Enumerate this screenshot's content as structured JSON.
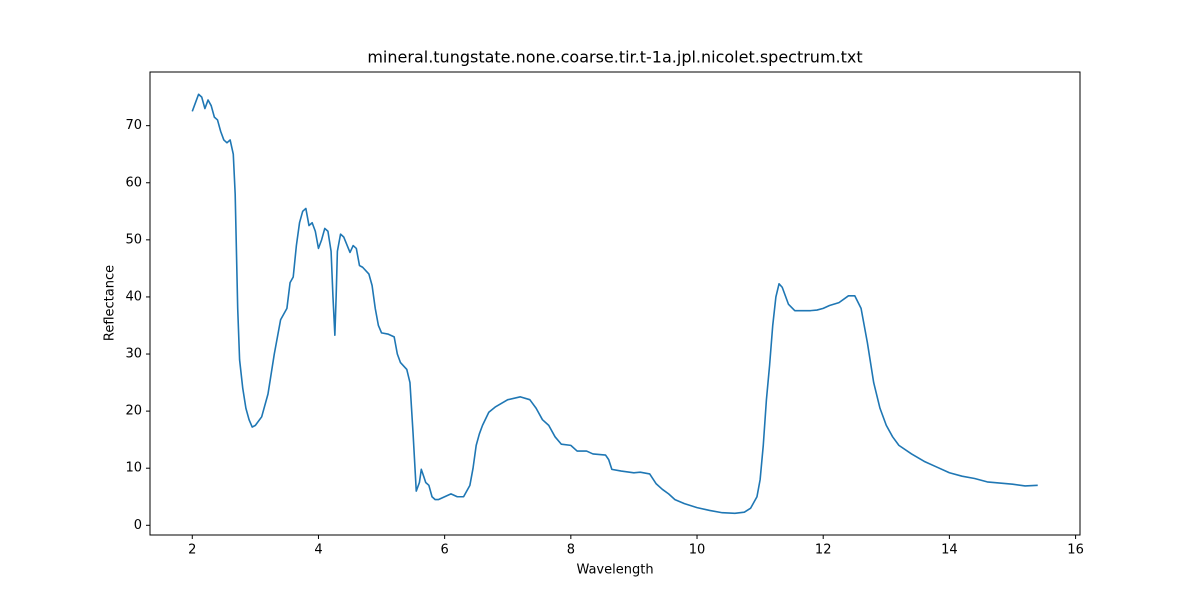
{
  "chart_data": {
    "type": "line",
    "title": "mineral.tungstate.none.coarse.tir.t-1a.jpl.nicolet.spectrum.txt",
    "x_label": "Wavelength",
    "y_label": "Reflectance",
    "xlim": [
      1.33,
      16.07
    ],
    "ylim": [
      -1.7,
      79.4
    ],
    "xticks": [
      2,
      4,
      6,
      8,
      10,
      12,
      14,
      16
    ],
    "yticks": [
      0,
      10,
      20,
      30,
      40,
      50,
      60,
      70
    ],
    "series": [
      {
        "color": "#1f77b4",
        "x": [
          2.0,
          2.05,
          2.1,
          2.15,
          2.2,
          2.25,
          2.3,
          2.35,
          2.4,
          2.45,
          2.5,
          2.55,
          2.6,
          2.65,
          2.68,
          2.7,
          2.72,
          2.75,
          2.8,
          2.85,
          2.9,
          2.95,
          3.0,
          3.1,
          3.2,
          3.3,
          3.4,
          3.5,
          3.55,
          3.6,
          3.65,
          3.7,
          3.75,
          3.8,
          3.85,
          3.9,
          3.95,
          4.0,
          4.05,
          4.1,
          4.15,
          4.2,
          4.23,
          4.26,
          4.28,
          4.3,
          4.35,
          4.4,
          4.5,
          4.55,
          4.6,
          4.65,
          4.7,
          4.8,
          4.85,
          4.9,
          4.95,
          5.0,
          5.1,
          5.2,
          5.25,
          5.3,
          5.4,
          5.45,
          5.5,
          5.55,
          5.6,
          5.63,
          5.67,
          5.7,
          5.75,
          5.8,
          5.85,
          5.9,
          6.0,
          6.1,
          6.2,
          6.3,
          6.4,
          6.45,
          6.5,
          6.55,
          6.6,
          6.7,
          6.8,
          7.0,
          7.2,
          7.35,
          7.45,
          7.55,
          7.65,
          7.75,
          7.85,
          8.0,
          8.1,
          8.25,
          8.35,
          8.55,
          8.6,
          8.65,
          8.8,
          9.0,
          9.1,
          9.25,
          9.35,
          9.45,
          9.55,
          9.65,
          9.8,
          10.0,
          10.2,
          10.4,
          10.6,
          10.75,
          10.85,
          10.95,
          11.0,
          11.05,
          11.1,
          11.15,
          11.2,
          11.25,
          11.3,
          11.35,
          11.45,
          11.55,
          11.7,
          11.8,
          11.9,
          12.0,
          12.1,
          12.25,
          12.4,
          12.5,
          12.6,
          12.7,
          12.8,
          12.9,
          13.0,
          13.1,
          13.2,
          13.4,
          13.6,
          13.8,
          14.0,
          14.2,
          14.4,
          14.6,
          14.8,
          15.0,
          15.2,
          15.4
        ],
        "values": [
          72.5,
          74,
          75.5,
          75,
          73,
          74.5,
          73.5,
          71.5,
          71,
          69,
          67.5,
          67,
          67.5,
          65,
          58,
          48,
          38,
          29,
          24,
          20.5,
          18.5,
          17.2,
          17.5,
          19,
          23,
          30,
          36,
          38,
          42.5,
          43.5,
          49,
          53,
          55,
          55.5,
          52.5,
          53,
          51.5,
          48.5,
          50,
          52,
          51.5,
          48,
          40,
          33.3,
          40,
          48,
          51,
          50.5,
          47.8,
          49,
          48.5,
          45.5,
          45.2,
          44,
          42,
          38,
          35,
          33.7,
          33.5,
          33,
          30,
          28.5,
          27.3,
          25,
          16,
          6,
          7.5,
          9.8,
          8.5,
          7.5,
          7,
          5,
          4.5,
          4.5,
          5,
          5.5,
          5,
          5,
          7,
          10,
          14,
          16,
          17.5,
          19.8,
          20.7,
          22,
          22.5,
          22,
          20.5,
          18.5,
          17.5,
          15.5,
          14.2,
          14,
          13,
          13,
          12.5,
          12.3,
          11.5,
          9.8,
          9.5,
          9.2,
          9.3,
          9,
          7.3,
          6.3,
          5.5,
          4.5,
          3.8,
          3.1,
          2.6,
          2.2,
          2.1,
          2.3,
          3,
          5,
          8,
          14,
          22,
          28,
          35,
          40,
          42.3,
          41.7,
          38.7,
          37.6,
          37.6,
          37.6,
          37.7,
          38,
          38.5,
          39,
          40.2,
          40.2,
          38,
          32,
          25,
          20.5,
          17.5,
          15.5,
          14,
          12.5,
          11.2,
          10.2,
          9.2,
          8.6,
          8.2,
          7.6,
          7.4,
          7.2,
          6.9,
          7.0
        ]
      }
    ]
  }
}
